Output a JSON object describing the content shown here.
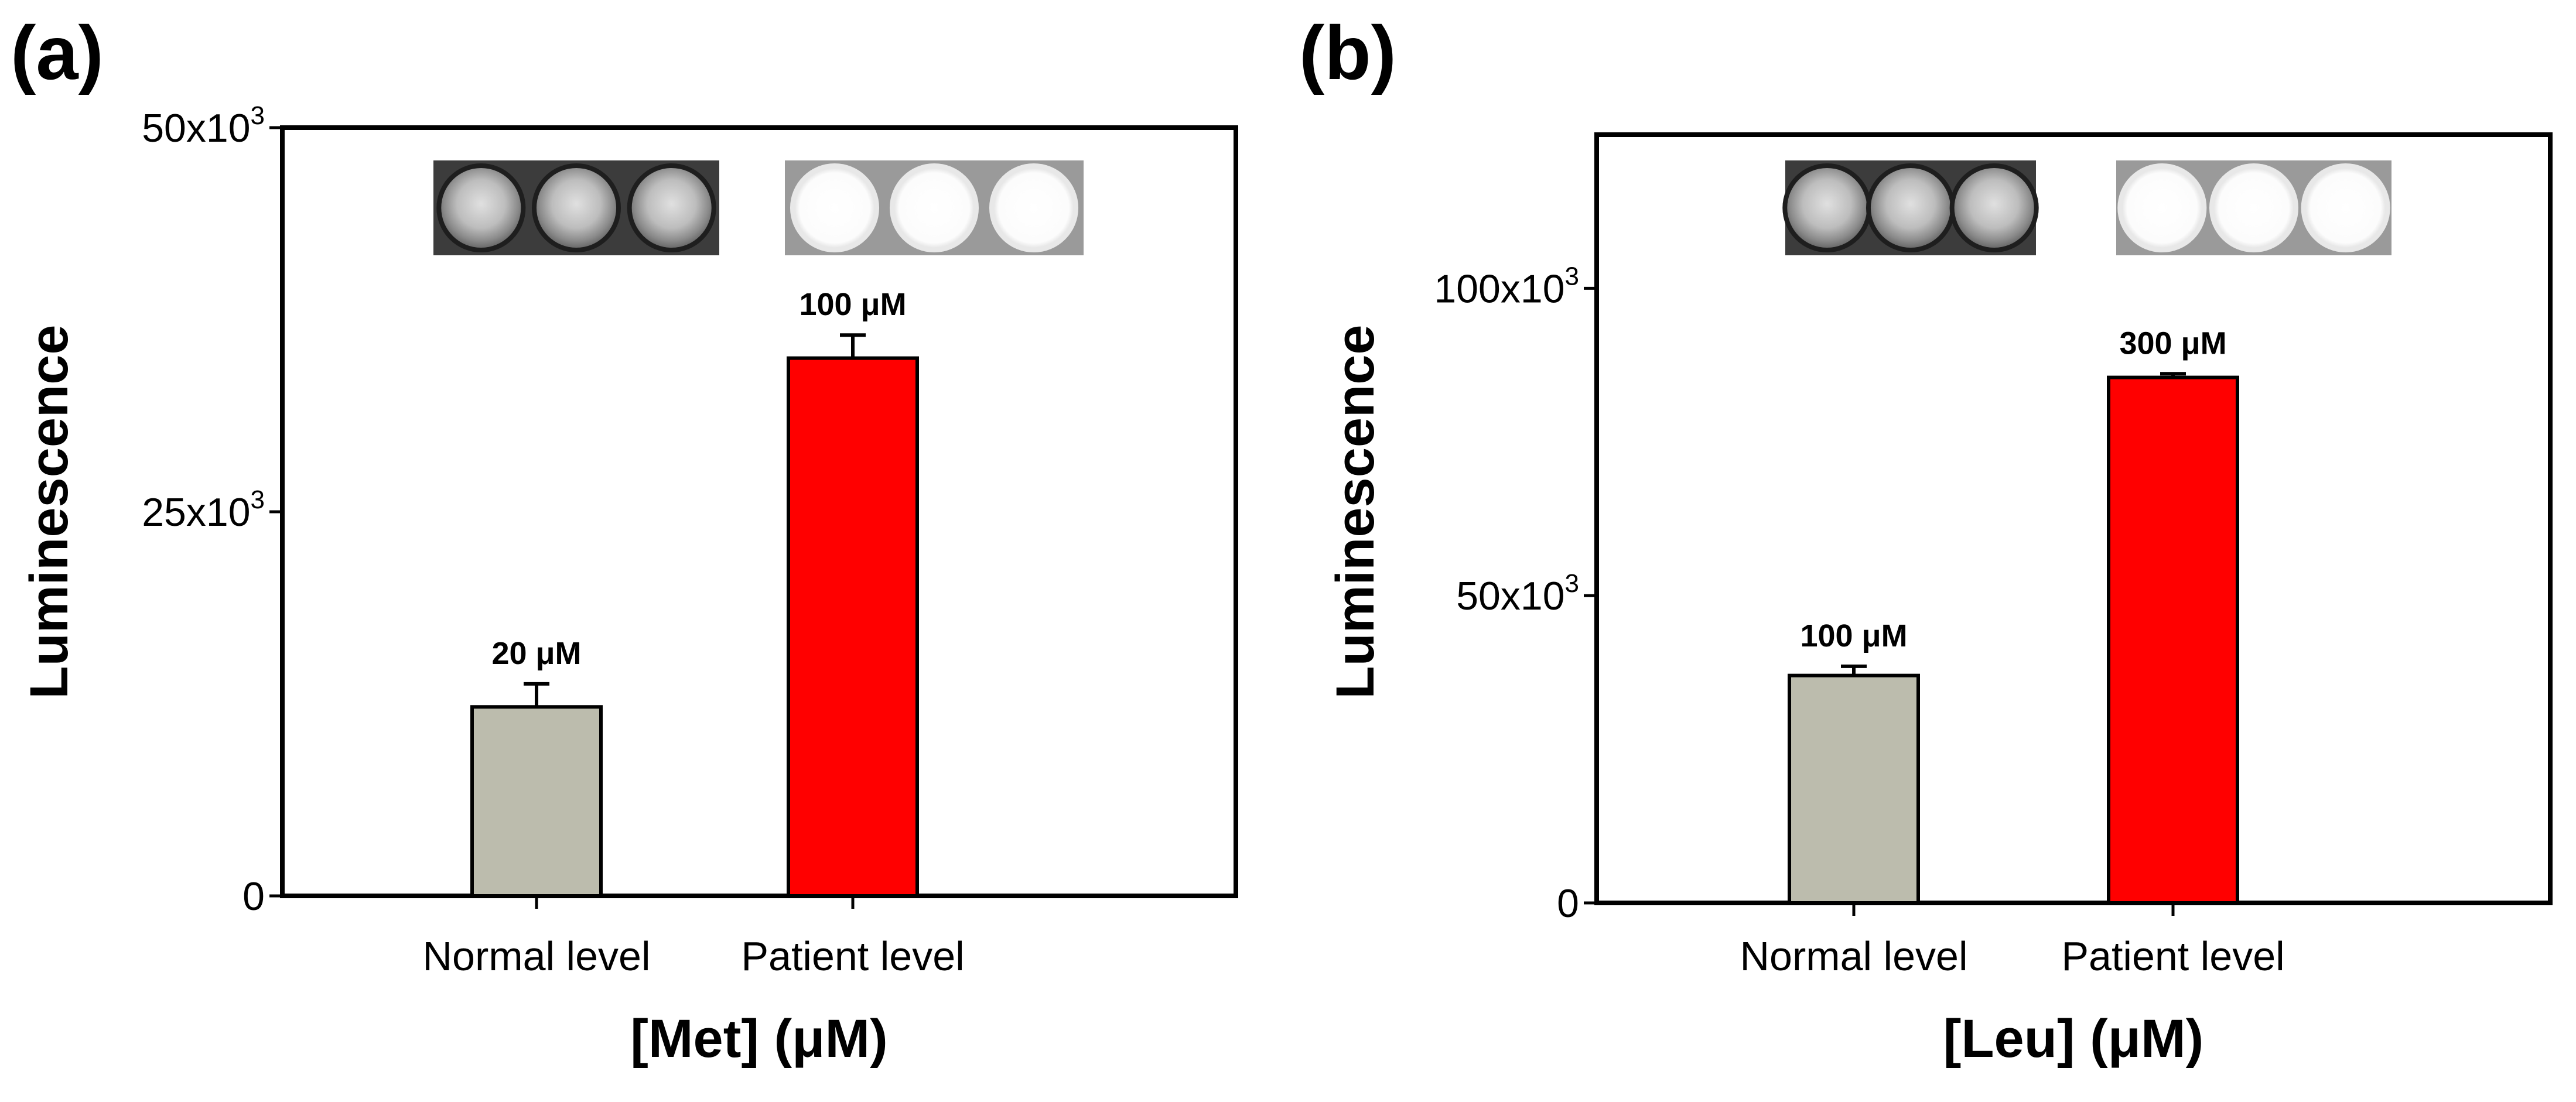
{
  "chart_data": [
    {
      "panel": "(a)",
      "type": "bar",
      "categories": [
        "Normal level",
        "Patient level"
      ],
      "values": [
        12300,
        35000
      ],
      "errors": [
        1500,
        1500
      ],
      "bar_labels": [
        "20 μM",
        "100 μM"
      ],
      "colors": [
        "#bcbcad",
        "#ff0000"
      ],
      "ylabel": "Luminescence",
      "xlabel": "[Met] (μM)",
      "ylim": [
        0,
        50000
      ],
      "yticks": [
        {
          "value": 0,
          "base": "0",
          "exp": ""
        },
        {
          "value": 25000,
          "base": "25x10",
          "exp": "3"
        },
        {
          "value": 50000,
          "base": "50x10",
          "exp": "3"
        }
      ],
      "well_images": [
        "normal-wells-image",
        "patient-wells-image"
      ]
    },
    {
      "panel": "(b)",
      "type": "bar",
      "categories": [
        "Normal level",
        "Patient level"
      ],
      "values": [
        37000,
        85500
      ],
      "errors": [
        1500,
        600
      ],
      "bar_labels": [
        "100 μM",
        "300 μM"
      ],
      "colors": [
        "#bcbcad",
        "#ff0000"
      ],
      "ylabel": "Luminescence",
      "xlabel": "[Leu] (μM)",
      "ylim": [
        0,
        125000
      ],
      "yticks": [
        {
          "value": 0,
          "base": "0",
          "exp": ""
        },
        {
          "value": 50000,
          "base": "50x10",
          "exp": "3"
        },
        {
          "value": 100000,
          "base": "100x10",
          "exp": "3"
        }
      ],
      "well_images": [
        "normal-wells-image",
        "patient-wells-image"
      ]
    }
  ]
}
